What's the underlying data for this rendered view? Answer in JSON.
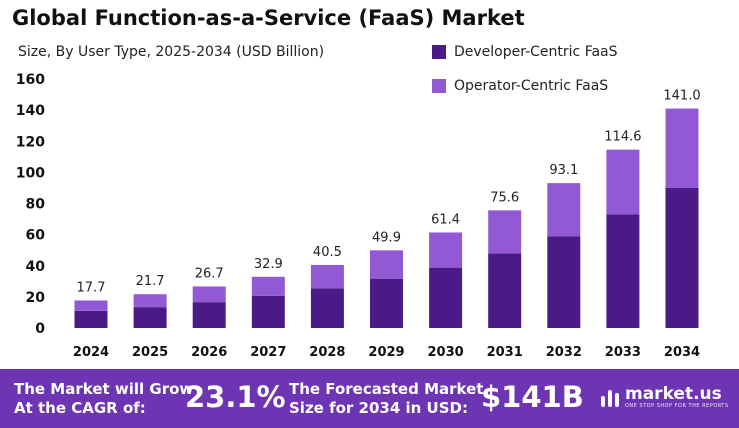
{
  "header": {
    "title": "Global Function-as-a-Service (FaaS) Market",
    "subtitle": "Size, By User Type, 2025-2034 (USD Billion)"
  },
  "colors": {
    "developer": "#4a1a86",
    "operator": "#9358d4",
    "footer_bg": "#6d34b3"
  },
  "chart_data": {
    "type": "bar",
    "stacked": true,
    "categories": [
      "2024",
      "2025",
      "2026",
      "2027",
      "2028",
      "2029",
      "2030",
      "2031",
      "2032",
      "2033",
      "2034"
    ],
    "series": [
      {
        "name": "Developer-Centric FaaS",
        "values": [
          11.0,
          13.4,
          16.6,
          20.7,
          25.5,
          31.5,
          38.8,
          48.0,
          59.0,
          73.1,
          90.0
        ]
      },
      {
        "name": "Operator-Centric FaaS",
        "values": [
          6.7,
          8.3,
          10.1,
          12.2,
          15.0,
          18.4,
          22.6,
          27.6,
          34.1,
          41.5,
          51.0
        ]
      }
    ],
    "totals": [
      "17.7",
      "21.7",
      "26.7",
      "32.9",
      "40.5",
      "49.9",
      "61.4",
      "75.6",
      "93.1",
      "114.6",
      "141.0"
    ],
    "ylim": [
      0,
      160
    ],
    "yticks": [
      "0",
      "20",
      "40",
      "60",
      "80",
      "100",
      "120",
      "140",
      "160"
    ],
    "grid": false,
    "legend_position": "top-right"
  },
  "footer": {
    "cagr_label_line1": "The Market will Grow",
    "cagr_label_line2": "At the CAGR of:",
    "cagr_value": "23.1%",
    "forecast_label_line1": "The Forecasted Market",
    "forecast_label_line2": "Size for 2034 in USD:",
    "forecast_value": "$141B"
  },
  "brand": {
    "name": "market.us",
    "tagline": "ONE STOP SHOP FOR THE REPORTS",
    "logo_icon": "market-us-logo-icon"
  }
}
